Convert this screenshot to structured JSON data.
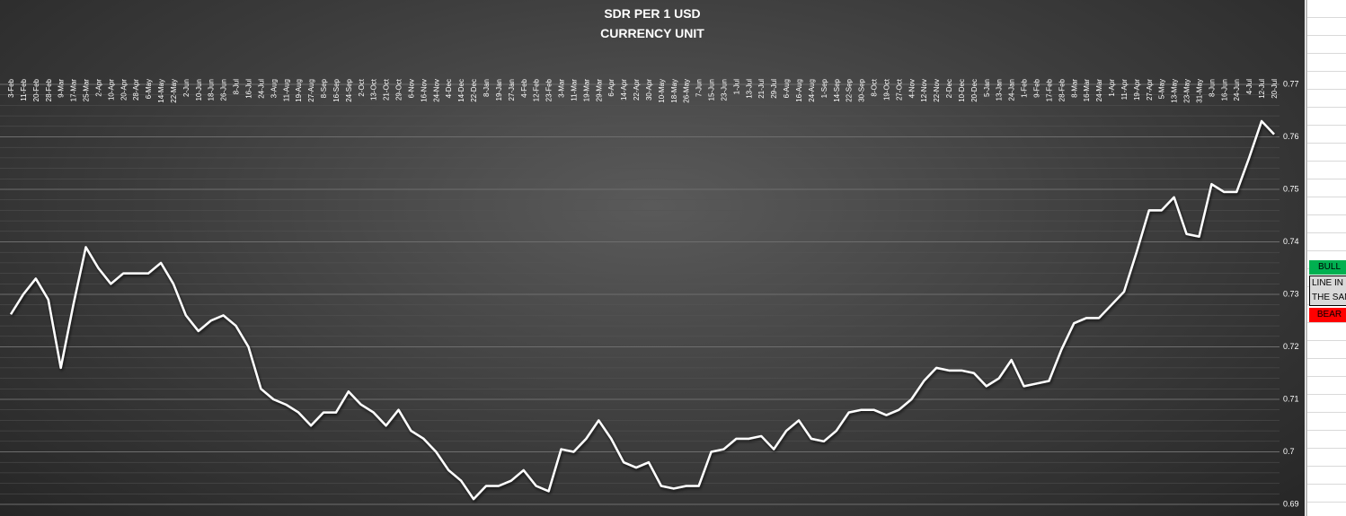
{
  "chart_data": {
    "type": "line",
    "title": "SDR PER 1 USD",
    "subtitle": "CURRENCY UNIT",
    "categories": [
      "3-Feb",
      "11-Feb",
      "20-Feb",
      "28-Feb",
      "9-Mar",
      "17-Mar",
      "25-Mar",
      "2-Apr",
      "10-Apr",
      "20-Apr",
      "28-Apr",
      "6-May",
      "14-May",
      "22-May",
      "2-Jun",
      "10-Jun",
      "18-Jun",
      "26-Jun",
      "8-Jul",
      "16-Jul",
      "24-Jul",
      "3-Aug",
      "11-Aug",
      "19-Aug",
      "27-Aug",
      "8-Sep",
      "16-Sep",
      "24-Sep",
      "2-Oct",
      "13-Oct",
      "21-Oct",
      "29-Oct",
      "6-Nov",
      "16-Nov",
      "24-Nov",
      "4-Dec",
      "14-Dec",
      "22-Dec",
      "8-Jan",
      "19-Jan",
      "27-Jan",
      "4-Feb",
      "12-Feb",
      "23-Feb",
      "3-Mar",
      "11-Mar",
      "19-Mar",
      "29-Mar",
      "6-Apr",
      "14-Apr",
      "22-Apr",
      "30-Apr",
      "10-May",
      "18-May",
      "26-May",
      "7-Jun",
      "15-Jun",
      "23-Jun",
      "1-Jul",
      "13-Jul",
      "21-Jul",
      "29-Jul",
      "6-Aug",
      "16-Aug",
      "24-Aug",
      "1-Sep",
      "14-Sep",
      "22-Sep",
      "30-Sep",
      "8-Oct",
      "19-Oct",
      "27-Oct",
      "4-Nov",
      "12-Nov",
      "22-Nov",
      "2-Dec",
      "10-Dec",
      "20-Dec",
      "5-Jan",
      "13-Jan",
      "24-Jan",
      "1-Feb",
      "9-Feb",
      "17-Feb",
      "28-Feb",
      "8-Mar",
      "16-Mar",
      "24-Mar",
      "1-Apr",
      "11-Apr",
      "19-Apr",
      "27-Apr",
      "5-May",
      "13-May",
      "23-May",
      "31-May",
      "8-Jun",
      "16-Jun",
      "24-Jun",
      "4-Jul",
      "12-Jul",
      "20-Jul"
    ],
    "values": [
      0.7262,
      0.73,
      0.733,
      0.729,
      0.716,
      0.728,
      0.739,
      0.735,
      0.732,
      0.734,
      0.734,
      0.734,
      0.736,
      0.732,
      0.726,
      0.723,
      0.725,
      0.726,
      0.724,
      0.72,
      0.712,
      0.71,
      0.709,
      0.7075,
      0.705,
      0.7075,
      0.7075,
      0.7115,
      0.709,
      0.7075,
      0.705,
      0.708,
      0.704,
      0.7025,
      0.7,
      0.6965,
      0.6945,
      0.691,
      0.6935,
      0.6935,
      0.6945,
      0.6965,
      0.6935,
      0.6925,
      0.7005,
      0.7,
      0.7025,
      0.706,
      0.7025,
      0.698,
      0.697,
      0.698,
      0.6935,
      0.693,
      0.6935,
      0.6935,
      0.7,
      0.7005,
      0.7025,
      0.7025,
      0.703,
      0.7005,
      0.704,
      0.706,
      0.7025,
      0.702,
      0.704,
      0.7075,
      0.708,
      0.708,
      0.707,
      0.708,
      0.71,
      0.7135,
      0.716,
      0.7155,
      0.7155,
      0.715,
      0.7125,
      0.714,
      0.7175,
      0.7125,
      0.713,
      0.7135,
      0.7195,
      0.7245,
      0.7255,
      0.7255,
      0.728,
      0.7305,
      0.738,
      0.746,
      0.746,
      0.7485,
      0.7415,
      0.741,
      0.751,
      0.7495,
      0.7495,
      0.756,
      0.763,
      0.7605
    ],
    "color": "#ffffff",
    "ylim": [
      0.69,
      0.77
    ],
    "yticks": [
      0.69,
      0.7,
      0.71,
      0.72,
      0.73,
      0.74,
      0.75,
      0.76,
      0.77
    ],
    "grid": true
  },
  "sheet": {
    "bull": "BULL",
    "line": "LINE IN THE SAN",
    "bear": "BEAR"
  }
}
